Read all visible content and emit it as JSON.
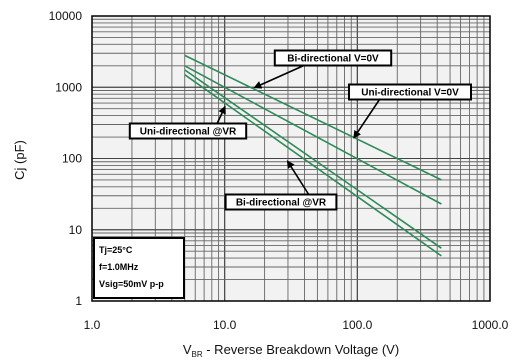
{
  "chart_data": {
    "type": "line",
    "x_scale": "log",
    "y_scale": "log",
    "xlim": [
      1,
      1000
    ],
    "ylim": [
      1,
      10000
    ],
    "x_ticks": [
      {
        "value": 1,
        "label": "1.0"
      },
      {
        "value": 10,
        "label": "10.0"
      },
      {
        "value": 100,
        "label": "100.0"
      },
      {
        "value": 1000,
        "label": "1000.0"
      }
    ],
    "y_ticks": [
      {
        "value": 1,
        "label": "1"
      },
      {
        "value": 10,
        "label": "10"
      },
      {
        "value": 100,
        "label": "100"
      },
      {
        "value": 1000,
        "label": "1000"
      },
      {
        "value": 10000,
        "label": "10000"
      }
    ],
    "xlabel_main": "V",
    "xlabel_sub": "BR",
    "xlabel_rest": " - Reverse Breakdown Voltage (V)",
    "ylabel": "Cj (pF)",
    "grid": true,
    "line_color": "#2e8b57",
    "series": [
      {
        "name": "Bi-directional V=0V",
        "x": [
          5,
          430
        ],
        "y": [
          2800,
          50
        ]
      },
      {
        "name": "Uni-directional V=0V",
        "x": [
          5,
          430
        ],
        "y": [
          2000,
          23
        ]
      },
      {
        "name": "Uni-directional @VR",
        "x": [
          5,
          430
        ],
        "y": [
          1750,
          5.5
        ]
      },
      {
        "name": "Bi-directional @VR",
        "x": [
          5,
          430
        ],
        "y": [
          1500,
          4.3
        ]
      }
    ],
    "annotations": [
      {
        "text": "Bi-directional V=0V",
        "target": [
          17,
          1000
        ]
      },
      {
        "text": "Uni-directional V=0V",
        "target": [
          95,
          200
        ]
      },
      {
        "text": "Uni-directional @VR",
        "target": [
          10,
          520
        ]
      },
      {
        "text": "Bi-directional @VR",
        "target": [
          30,
          90
        ]
      }
    ],
    "conditions": [
      "Tj=25°C",
      "f=1.0MHz",
      "Vsig=50mV p-p"
    ]
  }
}
